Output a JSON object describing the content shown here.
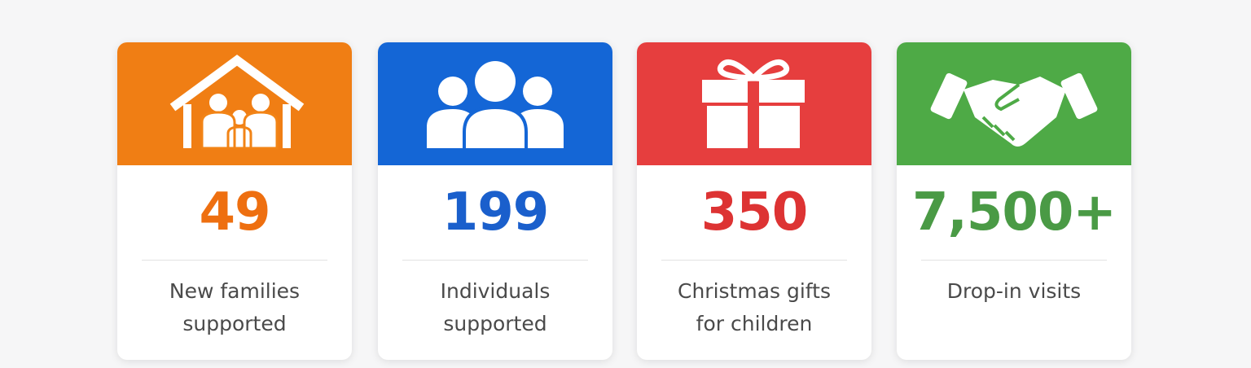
{
  "cards": [
    {
      "value": "49",
      "label_lines": [
        "New families",
        "supported"
      ],
      "color": "#f07e14",
      "number_color": "#ee6f10"
    },
    {
      "value": "199",
      "label_lines": [
        "Individuals",
        "supported"
      ],
      "color": "#1466d6",
      "number_color": "#1a5fcc"
    },
    {
      "value": "350",
      "label_lines": [
        "Christmas gifts",
        "for children"
      ],
      "color": "#e63e3e",
      "number_color": "#dd3333"
    },
    {
      "value": "7,500+",
      "label_lines": [
        "Drop-in visits"
      ],
      "color": "#4eaa46",
      "number_color": "#4a9a45"
    }
  ]
}
